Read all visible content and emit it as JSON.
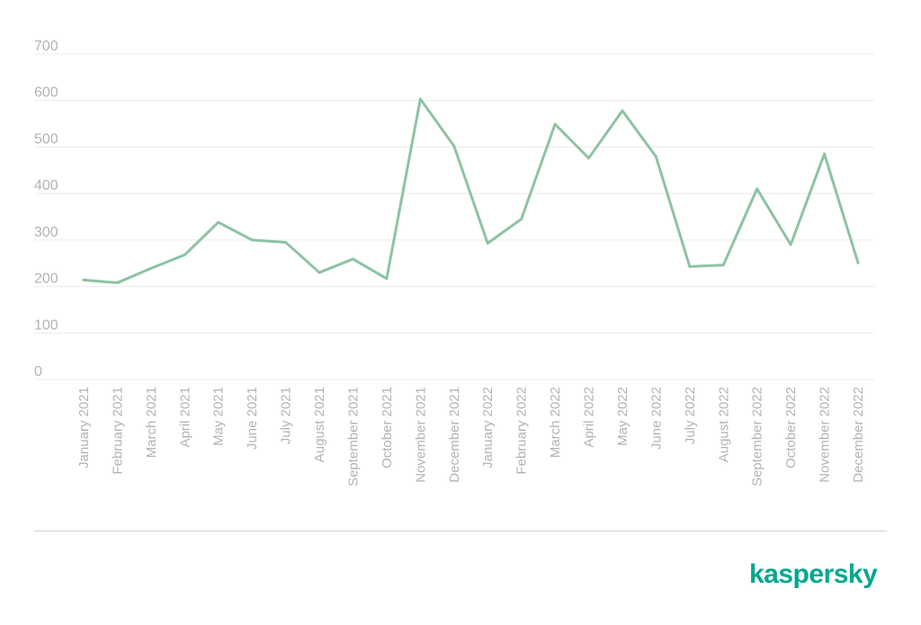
{
  "chart_data": {
    "type": "line",
    "title": "",
    "xlabel": "",
    "ylabel": "",
    "ylim": [
      0,
      700
    ],
    "yticks": [
      0,
      100,
      200,
      300,
      400,
      500,
      600,
      700
    ],
    "grid": true,
    "legend": "none",
    "categories": [
      "January 2021",
      "February 2021",
      "March 2021",
      "April 2021",
      "May 2021",
      "June 2021",
      "July 2021",
      "August 2021",
      "September 2021",
      "October 2021",
      "November 2021",
      "December 2021",
      "January 2022",
      "February 2022",
      "March 2022",
      "April 2022",
      "May 2022",
      "June 2022",
      "July 2022",
      "August 2022",
      "September 2022",
      "October 2022",
      "November 2022",
      "December 2022"
    ],
    "series": [
      {
        "values": [
          214,
          208,
          239,
          268,
          338,
          300,
          295,
          230,
          259,
          217,
          603,
          502,
          293,
          345,
          549,
          476,
          578,
          479,
          243,
          246,
          410,
          290,
          485,
          251
        ],
        "color": "#8dc3a4"
      }
    ]
  },
  "logo": {
    "text": "kaspersky",
    "color": "#00a88e"
  }
}
